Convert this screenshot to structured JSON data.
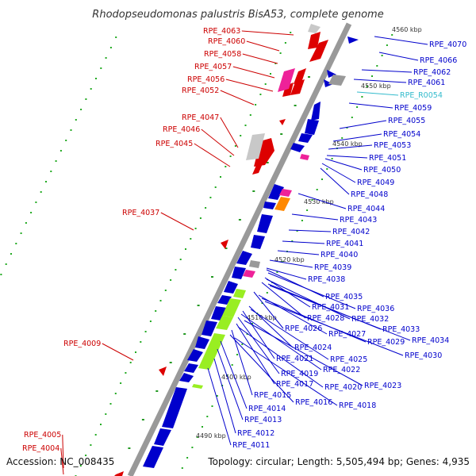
{
  "title": "Rhodopseudomonas palustris BisA53, complete genome",
  "accession": "Accession: NC_008435",
  "summary": "Topology: circular; Length: 5,505,494 bp; Genes: 4,935",
  "scale_labels": [
    "4560 kbp",
    "4550 kbp",
    "4540 kbp",
    "4530 kbp",
    "4520 kbp",
    "4510 kbp",
    "4500 kbp",
    "4490 kbp"
  ],
  "colors": {
    "forward": "#dd0000",
    "reverse": "#0000cc",
    "rna": "#33cccc",
    "backbone": "#888888",
    "pink": "#ee2299",
    "orange": "#ff8800",
    "lime": "#99ee22",
    "grey": "#c8c8c8"
  },
  "left_labels": [
    "RPE_4063",
    "RPE_4060",
    "RPE_4058",
    "RPE_4057",
    "RPE_4056",
    "RPE_4052",
    "RPE_4047",
    "RPE_4046",
    "RPE_4045",
    "RPE_4037",
    "RPE_4009",
    "RPE_4005",
    "RPE_4004"
  ],
  "right_labels": [
    "RPE_4070",
    "RPE_4066",
    "RPE_4062",
    "RPE_4061",
    "RPE_R0054",
    "RPE_4059",
    "RPE_4055",
    "RPE_4054",
    "RPE_4053",
    "RPE_4051",
    "RPE_4050",
    "RPE_4049",
    "RPE_4048",
    "RPE_4044",
    "RPE_4043",
    "RPE_4042",
    "RPE_4041",
    "RPE_4040",
    "RPE_4039",
    "RPE_4038",
    "RPE_4035",
    "RPE_4036",
    "RPE_4031",
    "RPE_4032",
    "RPE_4028",
    "RPE_4033",
    "RPE_4034",
    "RPE_4026",
    "RPE_4027",
    "RPE_4029",
    "RPE_4030",
    "RPE_4024",
    "RPE_4025",
    "RPE_4021",
    "RPE_4022",
    "RPE_4019",
    "RPE_4023",
    "RPE_4017",
    "RPE_4020",
    "RPE_4015",
    "RPE_4016",
    "RPE_4018",
    "RPE_4014",
    "RPE_4013",
    "RPE_4012",
    "RPE_4011"
  ]
}
